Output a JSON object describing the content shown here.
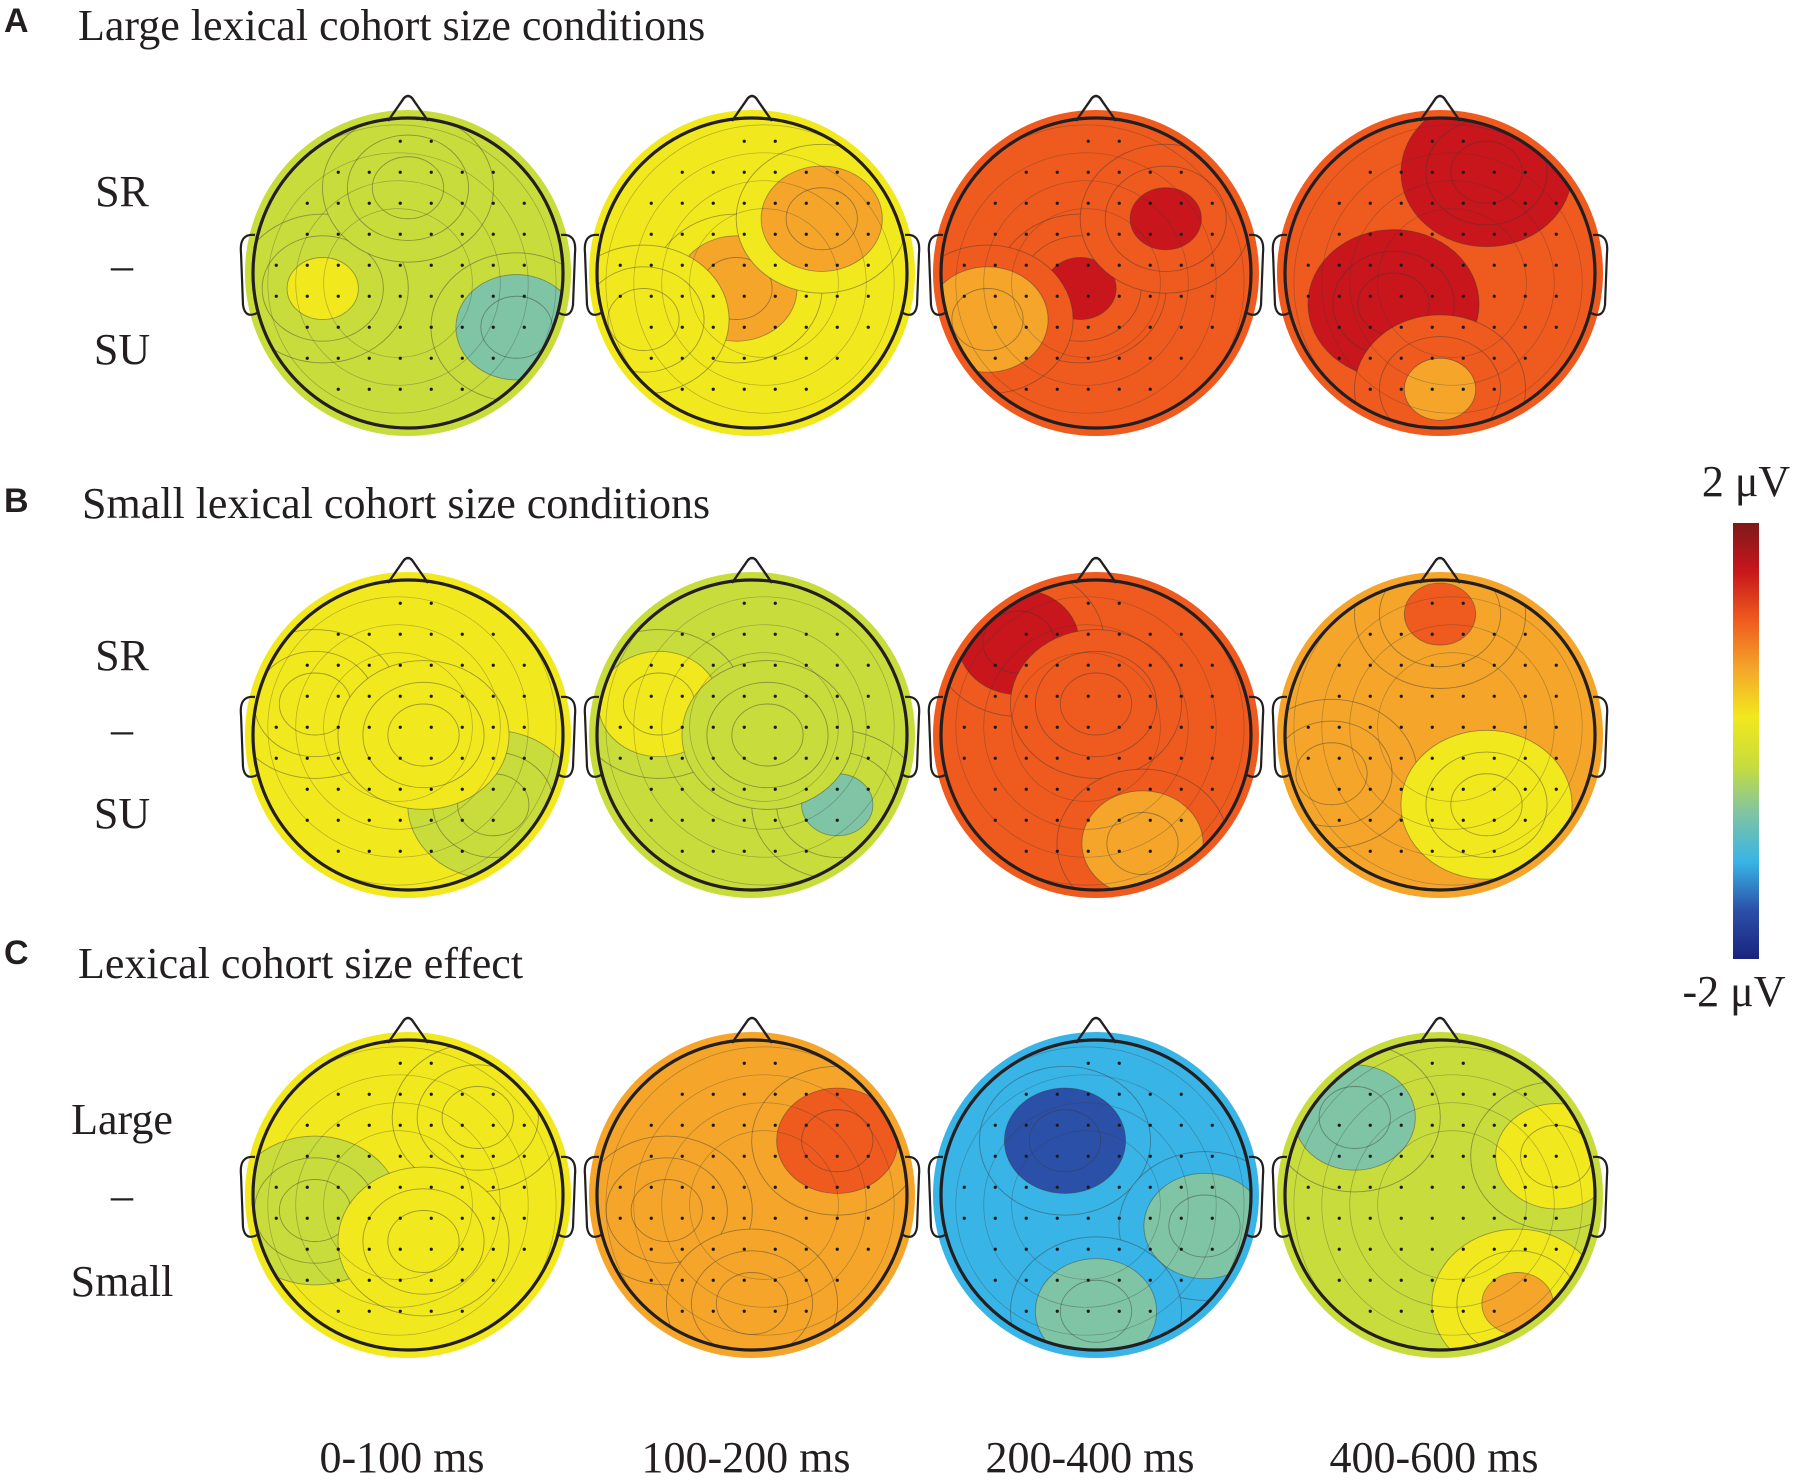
{
  "panels": [
    {
      "letter": "A",
      "title": "Large lexical cohort size conditions",
      "row_label": {
        "top": "SR",
        "mid": "–",
        "bottom": "SU"
      },
      "maps": [
        {
          "time": "0-100 ms",
          "level": -0.25,
          "pattern": "left-right-low"
        },
        {
          "time": "100-200 ms",
          "level": 0.3,
          "pattern": "center-high"
        },
        {
          "time": "200-400 ms",
          "level": 1.05,
          "pattern": "center-high"
        },
        {
          "time": "400-600 ms",
          "level": 1.3,
          "pattern": "frontal-right-high"
        }
      ]
    },
    {
      "letter": "B",
      "title": "Small lexical cohort size conditions",
      "row_label": {
        "top": "SR",
        "mid": "–",
        "bottom": "SU"
      },
      "maps": [
        {
          "time": "0-100 ms",
          "level": 0.1,
          "pattern": "right-low"
        },
        {
          "time": "100-200 ms",
          "level": -0.1,
          "pattern": "right-low"
        },
        {
          "time": "200-400 ms",
          "level": 1.1,
          "pattern": "frontal-left-high"
        },
        {
          "time": "400-600 ms",
          "level": 0.45,
          "pattern": "frontal-high"
        }
      ]
    },
    {
      "letter": "C",
      "title": "Lexical cohort size effect",
      "row_label": {
        "top": "Large",
        "mid": "–",
        "bottom": "Small"
      },
      "maps": [
        {
          "time": "0-100 ms",
          "level": 0.0,
          "pattern": "left-low"
        },
        {
          "time": "100-200 ms",
          "level": 0.75,
          "pattern": "right-high"
        },
        {
          "time": "200-400 ms",
          "level": -1.1,
          "pattern": "frontal-low"
        },
        {
          "time": "400-600 ms",
          "level": -0.2,
          "pattern": "mixed"
        }
      ]
    }
  ],
  "time_labels": [
    "0-100 ms",
    "100-200 ms",
    "200-400 ms",
    "400-600 ms"
  ],
  "colorbar": {
    "max_label": "2 μV",
    "min_label": "-2 μV",
    "max": 2,
    "min": -2,
    "colors": [
      "#1a237e",
      "#2b50a8",
      "#38b4e6",
      "#7fc4a4",
      "#c8dc3c",
      "#f2e81e",
      "#f4a52a",
      "#ef5a1e",
      "#c8161c",
      "#7e1a1a"
    ]
  },
  "colors": {
    "outline": "#231f20",
    "contour": "#3a3a3a",
    "text": "#231f20"
  }
}
